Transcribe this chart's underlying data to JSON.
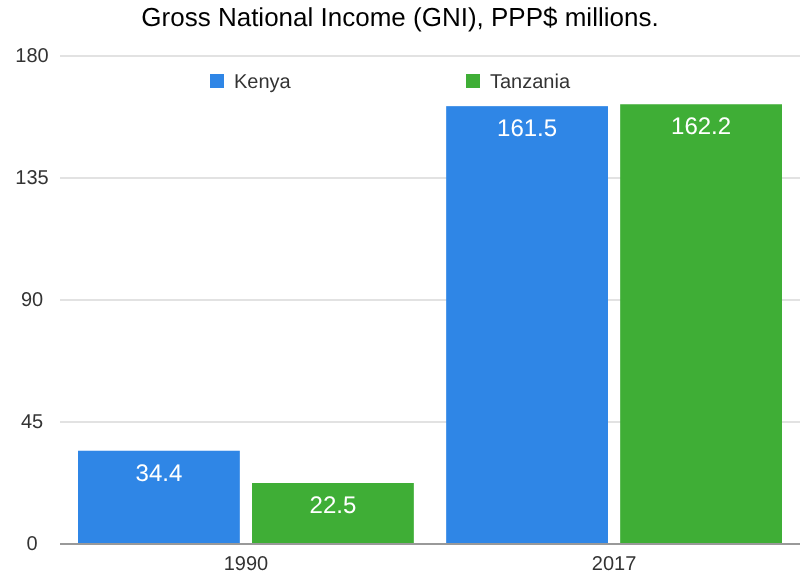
{
  "chart_data": {
    "type": "bar",
    "title": "Gross National Income (GNI), PPP$ millions.",
    "categories": [
      "1990",
      "2017"
    ],
    "series": [
      {
        "name": "Kenya",
        "color": "#2f86e6",
        "values": [
          34.4,
          161.5
        ]
      },
      {
        "name": "Tanzania",
        "color": "#3fae36",
        "values": [
          22.5,
          162.2
        ]
      }
    ],
    "ylim": [
      0,
      180
    ],
    "yticks": [
      0,
      45,
      90,
      135,
      180
    ],
    "grid": "y",
    "legend": "top",
    "data_labels": true
  }
}
